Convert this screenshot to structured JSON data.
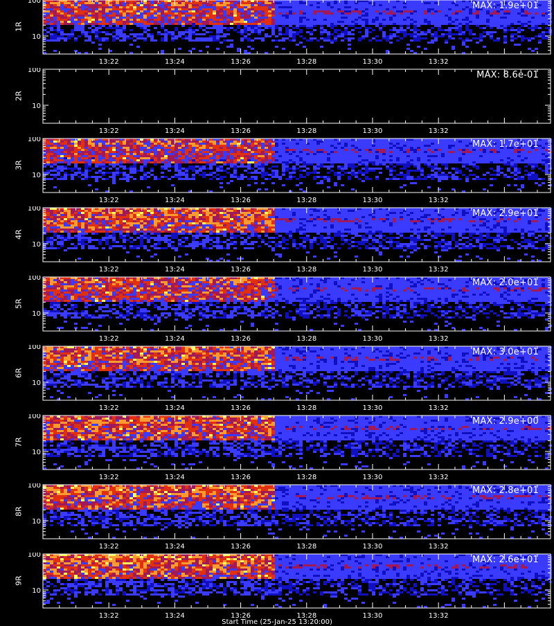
{
  "chart_data": {
    "type": "heatmap",
    "x_tick_labels": [
      "13:22",
      "13:24",
      "13:26",
      "13:28",
      "13:30",
      "13:32"
    ],
    "y_tick_labels": [
      "100",
      "10"
    ],
    "y_scale": "log",
    "colormap": [
      "#000000",
      "#1010c0",
      "#3b3bff",
      "#a01a5a",
      "#e03010",
      "#ff9a30",
      "#ffff60"
    ],
    "x_axis_title": "Start Time (25-Jan-25 13:20:00)",
    "panels": [
      {
        "label": "1R",
        "max_label": "MAX: 1.9e+01",
        "intensity": 0.6
      },
      {
        "label": "2R",
        "max_label": "MAX: 8.6e-01",
        "intensity": 0.0
      },
      {
        "label": "3R",
        "max_label": "MAX: 1.7e+01",
        "intensity": 0.55
      },
      {
        "label": "4R",
        "max_label": "MAX: 2.9e+01",
        "intensity": 0.75
      },
      {
        "label": "5R",
        "max_label": "MAX: 2.0e+01",
        "intensity": 0.62
      },
      {
        "label": "6R",
        "max_label": "MAX: 3.0e+01",
        "intensity": 0.7
      },
      {
        "label": "7R",
        "max_label": "MAX: 2.9e+00",
        "intensity": 0.72
      },
      {
        "label": "8R",
        "max_label": "MAX: 2.8e+01",
        "intensity": 0.75
      },
      {
        "label": "9R",
        "max_label": "MAX: 2.6e+01",
        "intensity": 0.82
      }
    ]
  }
}
